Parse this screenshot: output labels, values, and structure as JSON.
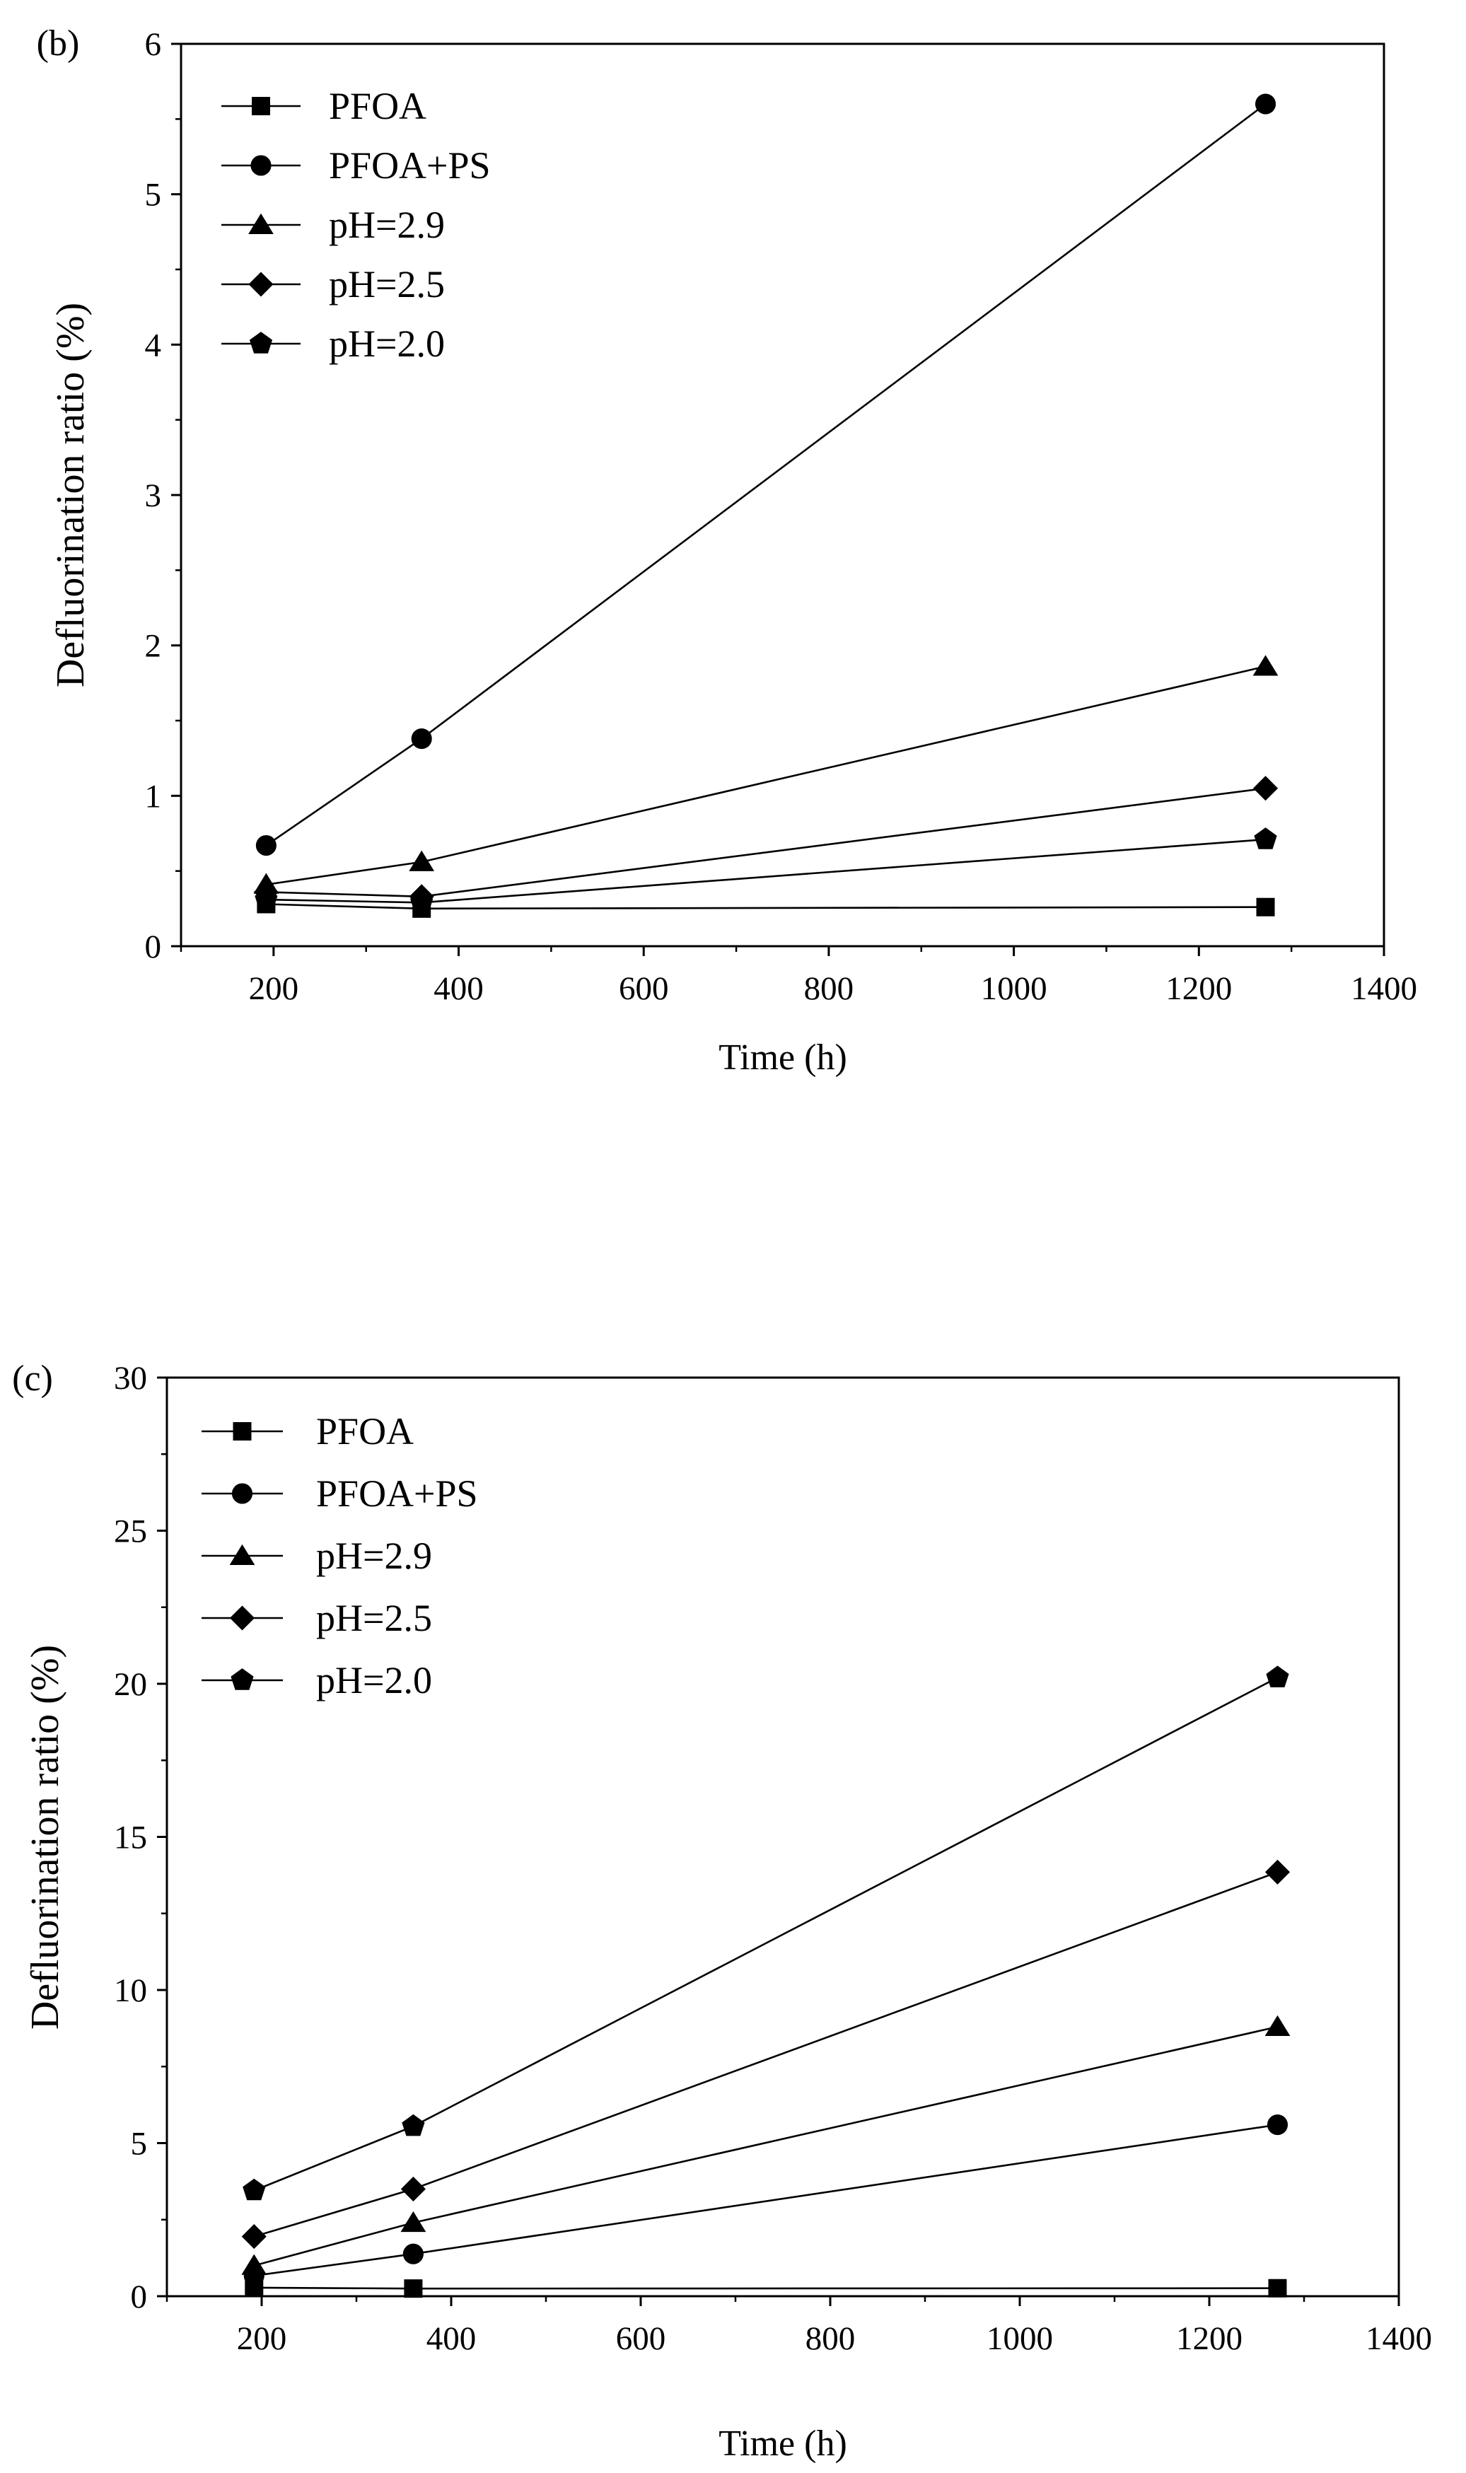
{
  "chart_data": [
    {
      "type": "line",
      "panel_label": "(b)",
      "title": "",
      "xlabel": "Time (h)",
      "ylabel": "Defluorination ratio (%)",
      "xlim": [
        100,
        1400
      ],
      "ylim": [
        0,
        6
      ],
      "xticks": [
        200,
        400,
        600,
        800,
        1000,
        1200,
        1400
      ],
      "yticks": [
        0,
        1,
        2,
        3,
        4,
        5,
        6
      ],
      "x": [
        192,
        360,
        1272
      ],
      "legend_position": "top-left",
      "grid": false,
      "series": [
        {
          "name": "PFOA",
          "marker": "square",
          "values": [
            0.28,
            0.25,
            0.26
          ]
        },
        {
          "name": "PFOA+PS",
          "marker": "circle",
          "values": [
            0.67,
            1.38,
            5.6
          ]
        },
        {
          "name": "pH=2.9",
          "marker": "triangle",
          "values": [
            0.41,
            0.56,
            1.86
          ]
        },
        {
          "name": "pH=2.5",
          "marker": "diamond",
          "values": [
            0.36,
            0.33,
            1.05
          ]
        },
        {
          "name": "pH=2.0",
          "marker": "pentagon",
          "values": [
            0.31,
            0.29,
            0.71
          ]
        }
      ]
    },
    {
      "type": "line",
      "panel_label": "(c)",
      "title": "",
      "xlabel": "Time (h)",
      "ylabel": "Defluorination ratio (%)",
      "xlim": [
        100,
        1400
      ],
      "ylim": [
        0,
        30
      ],
      "xticks": [
        200,
        400,
        600,
        800,
        1000,
        1200,
        1400
      ],
      "yticks": [
        0,
        5,
        10,
        15,
        20,
        25,
        30
      ],
      "x": [
        192,
        360,
        1272
      ],
      "legend_position": "top-left",
      "grid": false,
      "series": [
        {
          "name": "PFOA",
          "marker": "square",
          "values": [
            0.28,
            0.25,
            0.26
          ]
        },
        {
          "name": "PFOA+PS",
          "marker": "circle",
          "values": [
            0.67,
            1.38,
            5.6
          ]
        },
        {
          "name": "pH=2.9",
          "marker": "triangle",
          "values": [
            1.0,
            2.4,
            8.8
          ]
        },
        {
          "name": "pH=2.5",
          "marker": "diamond",
          "values": [
            1.95,
            3.5,
            13.85
          ]
        },
        {
          "name": "pH=2.0",
          "marker": "pentagon",
          "values": [
            3.45,
            5.55,
            20.2
          ]
        }
      ]
    }
  ]
}
